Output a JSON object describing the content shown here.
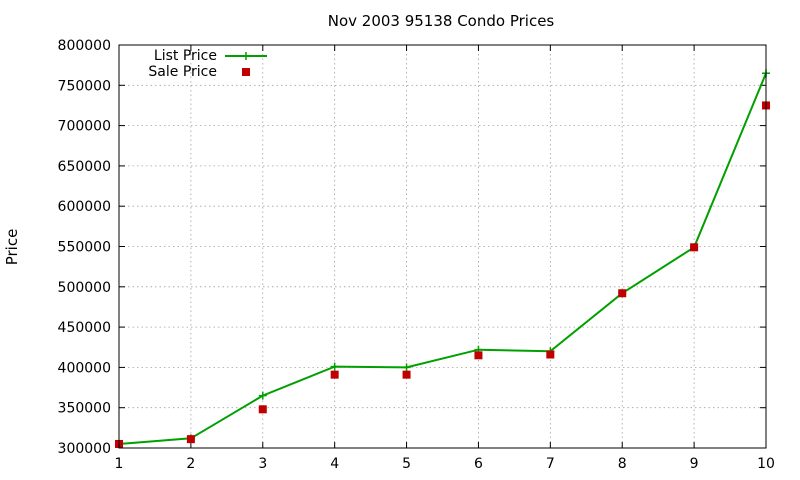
{
  "chart_data": {
    "type": "line",
    "title": "Nov 2003 95138 Condo Prices",
    "xlabel": "",
    "ylabel": "Price",
    "x": [
      1,
      2,
      3,
      4,
      5,
      6,
      7,
      8,
      9,
      10
    ],
    "xlim": [
      1,
      10
    ],
    "ylim": [
      300000,
      800000
    ],
    "x_ticks": [
      "1",
      "2",
      "3",
      "4",
      "5",
      "6",
      "7",
      "8",
      "9",
      "10"
    ],
    "y_ticks": [
      "300000",
      "350000",
      "400000",
      "450000",
      "500000",
      "550000",
      "600000",
      "650000",
      "700000",
      "750000",
      "800000"
    ],
    "grid": true,
    "legend_position": "top-left",
    "series": [
      {
        "name": "List Price",
        "style": "line+cross",
        "color": "#00a000",
        "values": [
          305000,
          312000,
          365000,
          401000,
          400000,
          422000,
          420000,
          492000,
          549000,
          765000
        ]
      },
      {
        "name": "Sale Price",
        "style": "square",
        "color": "#c00000",
        "values": [
          305000,
          311000,
          348000,
          391000,
          391000,
          415000,
          416000,
          492000,
          549000,
          725000
        ]
      }
    ]
  }
}
